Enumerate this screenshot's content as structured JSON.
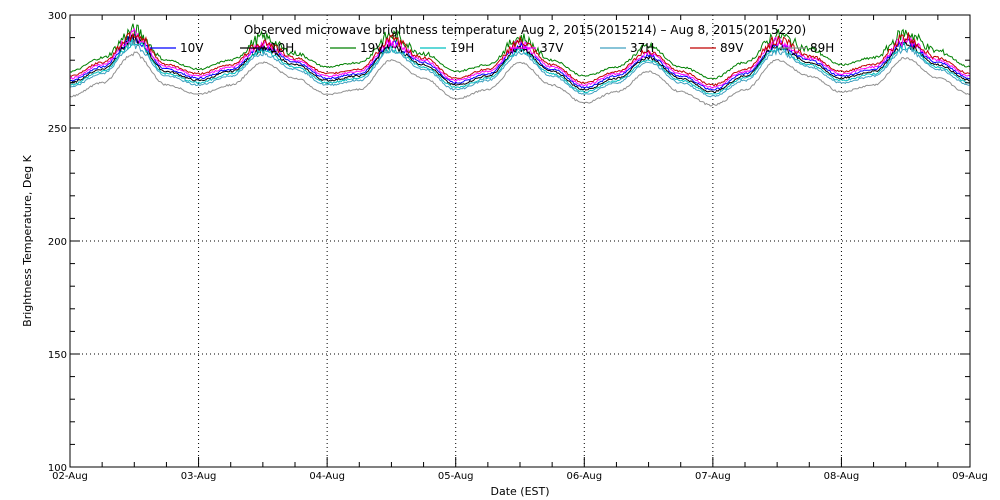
{
  "chart_data": {
    "type": "line",
    "title": "Observed microwave brightness temperature Aug  2, 2015(2015214) – Aug  8, 2015(2015220)",
    "xlabel": "Date (EST)",
    "ylabel": "Brightness Temperature, Deg K",
    "ylim": [
      100,
      300
    ],
    "yticks": [
      100,
      150,
      200,
      250,
      300
    ],
    "xlim": [
      "2015-08-02",
      "2015-08-09"
    ],
    "x_tick_labels": [
      "02-Aug",
      "03-Aug",
      "04-Aug",
      "05-Aug",
      "06-Aug",
      "07-Aug",
      "08-Aug",
      "09-Aug"
    ],
    "grid": true,
    "legend_position": "top",
    "x_days": [
      0,
      0.25,
      0.5,
      0.75,
      1,
      1.25,
      1.5,
      1.75,
      2,
      2.25,
      2.5,
      2.75,
      3,
      3.25,
      3.5,
      3.75,
      4,
      4.25,
      4.5,
      4.75,
      5,
      5.25,
      5.5,
      5.75,
      6,
      6.25,
      6.5,
      6.75,
      7
    ],
    "series": [
      {
        "name": "10V",
        "color": "#0000ff",
        "values": [
          271,
          277,
          290,
          276,
          272,
          276,
          286,
          279,
          272,
          274,
          287,
          279,
          270,
          274,
          286,
          276,
          268,
          273,
          282,
          273,
          267,
          274,
          287,
          280,
          273,
          276,
          288,
          279,
          272
        ]
      },
      {
        "name": "10H",
        "color": "#000000",
        "values": [
          270,
          276,
          289,
          275,
          271,
          275,
          285,
          278,
          271,
          273,
          286,
          278,
          269,
          273,
          285,
          275,
          267,
          272,
          281,
          272,
          266,
          273,
          286,
          279,
          272,
          275,
          287,
          278,
          271
        ]
      },
      {
        "name": "19V",
        "color": "#008000",
        "values": [
          275,
          281,
          293,
          280,
          276,
          280,
          290,
          283,
          277,
          279,
          291,
          283,
          275,
          278,
          290,
          280,
          273,
          277,
          286,
          277,
          272,
          279,
          291,
          285,
          278,
          281,
          292,
          284,
          277
        ]
      },
      {
        "name": "19H",
        "color": "#00c0c0",
        "values": [
          269,
          275,
          288,
          274,
          270,
          274,
          284,
          277,
          270,
          272,
          285,
          277,
          268,
          272,
          284,
          274,
          266,
          271,
          280,
          271,
          265,
          272,
          285,
          278,
          271,
          274,
          286,
          277,
          270
        ]
      },
      {
        "name": "37V",
        "color": "#ff00ff",
        "values": [
          272,
          278,
          291,
          277,
          273,
          277,
          287,
          280,
          273,
          275,
          288,
          280,
          271,
          275,
          287,
          277,
          269,
          274,
          283,
          274,
          268,
          275,
          288,
          281,
          274,
          277,
          289,
          280,
          273
        ]
      },
      {
        "name": "37H",
        "color": "#40a0c0",
        "values": [
          268,
          274,
          287,
          273,
          269,
          273,
          283,
          276,
          269,
          271,
          284,
          276,
          267,
          271,
          283,
          273,
          265,
          270,
          279,
          270,
          264,
          271,
          284,
          277,
          270,
          273,
          285,
          276,
          269
        ]
      },
      {
        "name": "89V",
        "color": "#c00000",
        "values": [
          273,
          279,
          292,
          278,
          274,
          278,
          288,
          281,
          274,
          276,
          289,
          281,
          272,
          276,
          288,
          278,
          270,
          275,
          284,
          275,
          269,
          276,
          289,
          282,
          275,
          278,
          290,
          281,
          274
        ]
      },
      {
        "name": "89H",
        "color": "#909090",
        "values": [
          264,
          270,
          283,
          269,
          265,
          269,
          279,
          272,
          265,
          267,
          280,
          272,
          263,
          267,
          279,
          269,
          261,
          266,
          275,
          266,
          260,
          267,
          280,
          273,
          266,
          269,
          281,
          272,
          265
        ]
      }
    ]
  }
}
